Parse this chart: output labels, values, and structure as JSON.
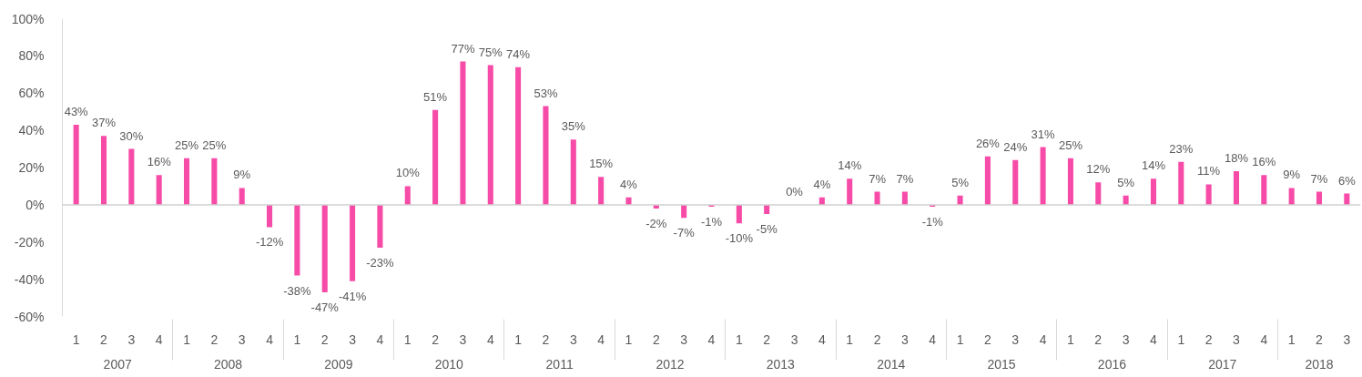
{
  "chart_data": {
    "type": "bar",
    "categories": [
      [
        "2007",
        "1"
      ],
      [
        null,
        "2"
      ],
      [
        null,
        "3"
      ],
      [
        null,
        "4"
      ],
      [
        "2008",
        "1"
      ],
      [
        null,
        "2"
      ],
      [
        null,
        "3"
      ],
      [
        null,
        "4"
      ],
      [
        "2009",
        "1"
      ],
      [
        null,
        "2"
      ],
      [
        null,
        "3"
      ],
      [
        null,
        "4"
      ],
      [
        "2010",
        "1"
      ],
      [
        null,
        "2"
      ],
      [
        null,
        "3"
      ],
      [
        null,
        "4"
      ],
      [
        "2011",
        "1"
      ],
      [
        null,
        "2"
      ],
      [
        null,
        "3"
      ],
      [
        null,
        "4"
      ],
      [
        "2012",
        "1"
      ],
      [
        null,
        "2"
      ],
      [
        null,
        "3"
      ],
      [
        null,
        "4"
      ],
      [
        "2013",
        "1"
      ],
      [
        null,
        "2"
      ],
      [
        null,
        "3"
      ],
      [
        null,
        "4"
      ],
      [
        "2014",
        "1"
      ],
      [
        null,
        "2"
      ],
      [
        null,
        "3"
      ],
      [
        null,
        "4"
      ],
      [
        "2015",
        "1"
      ],
      [
        null,
        "2"
      ],
      [
        null,
        "3"
      ],
      [
        null,
        "4"
      ],
      [
        "2016",
        "1"
      ],
      [
        null,
        "2"
      ],
      [
        null,
        "3"
      ],
      [
        null,
        "4"
      ],
      [
        "2017",
        "1"
      ],
      [
        null,
        "2"
      ],
      [
        null,
        "3"
      ],
      [
        null,
        "4"
      ],
      [
        "2018",
        "1"
      ],
      [
        null,
        "2"
      ],
      [
        null,
        "3"
      ]
    ],
    "values": [
      43,
      37,
      30,
      16,
      25,
      25,
      9,
      -12,
      -38,
      -47,
      -41,
      -23,
      10,
      51,
      77,
      75,
      74,
      53,
      35,
      15,
      4,
      -2,
      -7,
      -1,
      -10,
      -5,
      0,
      4,
      14,
      7,
      7,
      -1,
      5,
      26,
      24,
      31,
      25,
      12,
      5,
      14,
      23,
      11,
      18,
      16,
      9,
      7,
      6
    ],
    "value_labels": [
      "43%",
      "37%",
      "30%",
      "16%",
      "25%",
      "25%",
      "9%",
      "-12%",
      "-38%",
      "-47%",
      "-41%",
      "-23%",
      "10%",
      "51%",
      "77%",
      "75%",
      "74%",
      "53%",
      "35%",
      "15%",
      "4%",
      "-2%",
      "-7%",
      "-1%",
      "-10%",
      "-5%",
      "0%",
      "4%",
      "14%",
      "7%",
      "7%",
      "-1%",
      "5%",
      "26%",
      "24%",
      "31%",
      "25%",
      "12%",
      "5%",
      "14%",
      "23%",
      "11%",
      "18%",
      "16%",
      "9%",
      "7%",
      "6%"
    ],
    "color": "#f74ba8",
    "ylim": [
      -60,
      100
    ],
    "yticks": [
      {
        "value": -60,
        "label": "-60%"
      },
      {
        "value": -40,
        "label": "-40%"
      },
      {
        "value": -20,
        "label": "-20%"
      },
      {
        "value": 0,
        "label": "0%"
      },
      {
        "value": 20,
        "label": "20%"
      },
      {
        "value": 40,
        "label": "40%"
      },
      {
        "value": 60,
        "label": "60%"
      },
      {
        "value": 80,
        "label": "80%"
      },
      {
        "value": 100,
        "label": "100%"
      }
    ],
    "ref_lines": [
      {
        "axis": "y",
        "value": 0,
        "color": "#d0d0d0"
      }
    ],
    "grid": false
  }
}
